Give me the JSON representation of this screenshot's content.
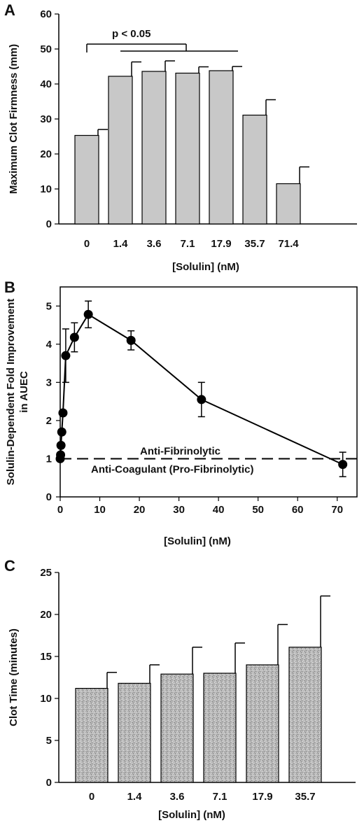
{
  "chart_data": [
    {
      "panel_label": "A",
      "type": "bar",
      "categories": [
        "0",
        "1.4",
        "3.6",
        "7.1",
        "17.9",
        "35.7",
        "71.4"
      ],
      "values": [
        25.3,
        42.2,
        43.6,
        43.1,
        43.8,
        31.1,
        11.5
      ],
      "errors": [
        1.7,
        4.1,
        3.0,
        1.8,
        1.2,
        4.4,
        4.8
      ],
      "xlabel": "[Solulin] (nM)",
      "ylabel": "Maximum Clot Firmness (mm)",
      "ylim": [
        0,
        60
      ],
      "yticks": [
        0,
        10,
        20,
        30,
        40,
        50,
        60
      ],
      "bar_color": "#c8c8c8",
      "annotation": "p < 0.05",
      "significance_bracket": {
        "from_category": "0",
        "to_categories": [
          "1.4",
          "3.6",
          "7.1",
          "17.9"
        ]
      }
    },
    {
      "panel_label": "B",
      "type": "line",
      "x": [
        0,
        0.1,
        0.2,
        0.4,
        0.7,
        1.4,
        3.6,
        7.1,
        17.9,
        35.7,
        71.4
      ],
      "y": [
        1.0,
        1.1,
        1.35,
        1.7,
        2.2,
        3.7,
        4.18,
        4.78,
        4.1,
        2.55,
        0.85
      ],
      "errors": [
        0,
        0,
        0,
        0,
        0,
        0.7,
        0.38,
        0.35,
        0.25,
        0.45,
        0.32
      ],
      "xlabel": "[Solulin] (nM)",
      "ylabel": "Solulin-Dependent Fold Improvement in AUEC",
      "xlim": [
        0,
        75
      ],
      "ylim": [
        0,
        5.5
      ],
      "xticks": [
        0,
        10,
        20,
        30,
        40,
        50,
        60,
        70
      ],
      "yticks": [
        0,
        1,
        2,
        3,
        4,
        5
      ],
      "reference_line": {
        "y": 1,
        "style": "dashed"
      },
      "annotations": [
        "Anti-Fibrinolytic",
        "Anti-Coagulant (Pro-Fibrinolytic)"
      ]
    },
    {
      "panel_label": "C",
      "type": "bar",
      "categories": [
        "0",
        "1.4",
        "3.6",
        "7.1",
        "17.9",
        "35.7"
      ],
      "values": [
        11.2,
        11.8,
        12.9,
        13.0,
        14.0,
        16.1
      ],
      "errors": [
        1.9,
        2.2,
        3.2,
        3.6,
        4.8,
        6.1
      ],
      "xlabel": "[Solulin] (nM)",
      "ylabel": "Clot Time (minutes)",
      "ylim": [
        0,
        25
      ],
      "yticks": [
        0,
        5,
        10,
        15,
        20,
        25
      ],
      "bar_color": "#b8b8b8"
    }
  ]
}
